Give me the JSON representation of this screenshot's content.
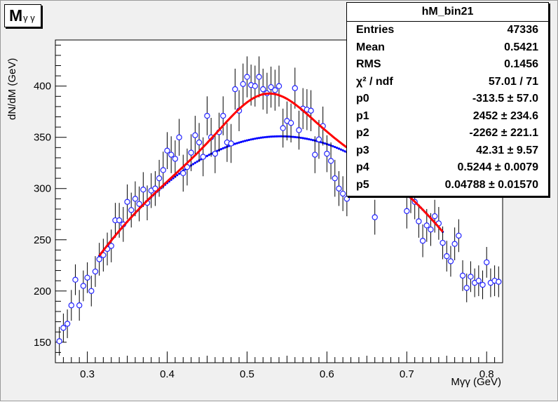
{
  "title": {
    "main": "M",
    "sub": "γ γ"
  },
  "stats": {
    "name": "hM_bin21",
    "rows": [
      {
        "key": "Entries",
        "value": "47336"
      },
      {
        "key": "Mean",
        "value": "0.5421"
      },
      {
        "key": "RMS",
        "value": "0.1456"
      },
      {
        "key": "χ² / ndf",
        "value": "57.01 / 71"
      },
      {
        "key": "p0",
        "value": "-313.5 ± 57.0"
      },
      {
        "key": "p1",
        "value": "2452 ± 234.6"
      },
      {
        "key": "p2",
        "value": "-2262 ± 221.1"
      },
      {
        "key": "p3",
        "value": "42.31 ± 9.57"
      },
      {
        "key": "p4",
        "value": "0.5244 ± 0.0079"
      },
      {
        "key": "p5",
        "value": "0.04788 ± 0.01570"
      }
    ]
  },
  "colors": {
    "data": "#2323ff",
    "fit": "#ff0000",
    "background": "#0000ff"
  },
  "chart_data": {
    "type": "scatter",
    "xlabel": "Mγγ (GeV)",
    "ylabel": "dN/dM (GeV)",
    "xlim": [
      0.26,
      0.82
    ],
    "ylim": [
      130,
      445
    ],
    "x_ticks": [
      0.3,
      0.4,
      0.5,
      0.6,
      0.7,
      0.8
    ],
    "y_ticks": [
      150,
      200,
      250,
      300,
      350,
      400
    ],
    "grid": false,
    "legend": "top-right",
    "fit_range": [
      0.315,
      0.745
    ],
    "fit_params": {
      "p0": -313.5,
      "p1": 2452,
      "p2": -2262,
      "p3": 42.31,
      "p4": 0.5244,
      "p5": 0.04788
    },
    "series": [
      {
        "kind": "points",
        "x": [
          0.265,
          0.27,
          0.275,
          0.28,
          0.285,
          0.29,
          0.295,
          0.3,
          0.305,
          0.31,
          0.315,
          0.32,
          0.325,
          0.33,
          0.335,
          0.34,
          0.345,
          0.35,
          0.355,
          0.36,
          0.365,
          0.37,
          0.375,
          0.38,
          0.385,
          0.39,
          0.395,
          0.4,
          0.405,
          0.41,
          0.415,
          0.42,
          0.425,
          0.43,
          0.435,
          0.44,
          0.445,
          0.45,
          0.455,
          0.46,
          0.465,
          0.47,
          0.475,
          0.48,
          0.485,
          0.49,
          0.495,
          0.5,
          0.505,
          0.51,
          0.515,
          0.52,
          0.525,
          0.53,
          0.535,
          0.54,
          0.545,
          0.55,
          0.555,
          0.56,
          0.565,
          0.57,
          0.575,
          0.58,
          0.585,
          0.59,
          0.595,
          0.6,
          0.605,
          0.61,
          0.615,
          0.62,
          0.625,
          0.66,
          0.7,
          0.705,
          0.71,
          0.715,
          0.72,
          0.725,
          0.73,
          0.735,
          0.74,
          0.745,
          0.75,
          0.755,
          0.76,
          0.765,
          0.77,
          0.775,
          0.78,
          0.785,
          0.79,
          0.795,
          0.8,
          0.805,
          0.81,
          0.815
        ],
        "y": [
          151,
          164,
          168,
          186,
          211,
          186,
          205,
          213,
          200,
          219,
          231,
          235,
          241,
          244,
          269,
          269,
          265,
          287,
          279,
          290,
          285,
          299,
          286,
          298,
          300,
          310,
          318,
          337,
          333,
          329,
          350,
          315,
          321,
          335,
          352,
          345,
          331,
          371,
          350,
          334,
          355,
          371,
          345,
          344,
          397,
          376,
          402,
          409,
          401,
          400,
          409,
          397,
          393,
          399,
          396,
          400,
          359,
          366,
          364,
          398,
          357,
          378,
          377,
          376,
          333,
          348,
          361,
          334,
          327,
          310,
          300,
          295,
          290,
          272,
          278,
          293,
          287,
          268,
          249,
          264,
          260,
          273,
          266,
          247,
          234,
          229,
          246,
          254,
          215,
          203,
          214,
          208,
          210,
          206,
          228,
          208,
          210,
          209
        ],
        "err": [
          14,
          14,
          14,
          15,
          15,
          15,
          15,
          15,
          15,
          15,
          16,
          16,
          16,
          16,
          17,
          17,
          17,
          17,
          17,
          17,
          17,
          17,
          17,
          17,
          17,
          18,
          18,
          18,
          18,
          18,
          18,
          18,
          18,
          18,
          19,
          19,
          19,
          19,
          19,
          19,
          19,
          19,
          19,
          19,
          20,
          20,
          20,
          20,
          20,
          20,
          20,
          20,
          20,
          20,
          20,
          20,
          19,
          19,
          19,
          20,
          19,
          20,
          20,
          20,
          18,
          19,
          19,
          18,
          18,
          18,
          17,
          17,
          17,
          17,
          17,
          17,
          17,
          16,
          16,
          16,
          16,
          16,
          16,
          16,
          15,
          15,
          16,
          16,
          15,
          14,
          15,
          14,
          15,
          14,
          15,
          14,
          15,
          15
        ]
      },
      {
        "kind": "fit",
        "name": "",
        "function": "gaus + pol2"
      },
      {
        "kind": "background",
        "name": "",
        "function": "pol2"
      }
    ]
  }
}
